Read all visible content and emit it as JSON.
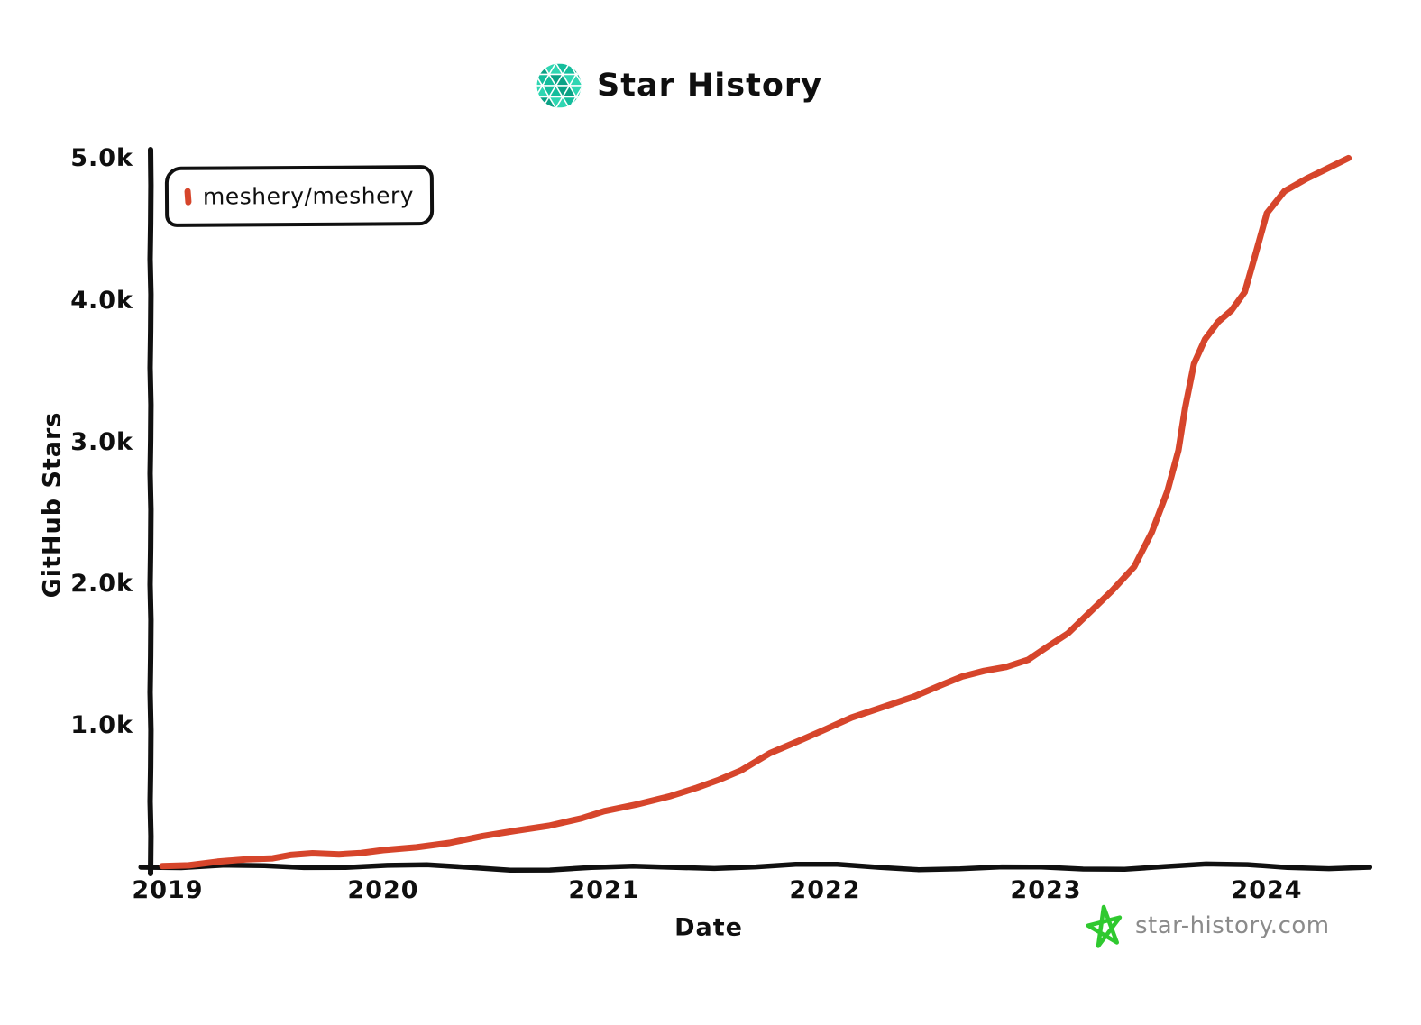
{
  "header": {
    "title": "Star History"
  },
  "legend": {
    "items": [
      {
        "label": "meshery/meshery",
        "color": "#d6452b"
      }
    ]
  },
  "watermark": {
    "text": "star-history.com",
    "text_color": "#8b8b8b",
    "star_color": "#2fc92f"
  },
  "colors": {
    "accent_red": "#d6452b",
    "axis_black": "#101010",
    "logo_teals": [
      "#14bd9c",
      "#0ba185",
      "#2fd6b2"
    ],
    "watermark_green": "#2fc92f",
    "watermark_gray": "#8b8b8b"
  },
  "chart_data": {
    "type": "line",
    "title": "Star History",
    "xlabel": "Date",
    "ylabel": "GitHub Stars",
    "xlim": [
      2018.93,
      2024.45
    ],
    "ylim": [
      0,
      5050
    ],
    "grid": false,
    "legend_position": "top-left",
    "style": "hand-drawn (xkcd)",
    "xticks": [
      {
        "label": "2019",
        "value": 2019
      },
      {
        "label": "2020",
        "value": 2020
      },
      {
        "label": "2021",
        "value": 2021
      },
      {
        "label": "2022",
        "value": 2022
      },
      {
        "label": "2023",
        "value": 2023
      },
      {
        "label": "2024",
        "value": 2024
      }
    ],
    "yticks": [
      {
        "label": "1.0k",
        "value": 1000
      },
      {
        "label": "2.0k",
        "value": 2000
      },
      {
        "label": "3.0k",
        "value": 3000
      },
      {
        "label": "4.0k",
        "value": 4000
      },
      {
        "label": "5.0k",
        "value": 5000
      }
    ],
    "series": [
      {
        "name": "meshery/meshery",
        "color": "#d6452b",
        "points": [
          [
            2019.0,
            8
          ],
          [
            2019.12,
            20
          ],
          [
            2019.25,
            35
          ],
          [
            2019.38,
            52
          ],
          [
            2019.5,
            70
          ],
          [
            2019.58,
            86
          ],
          [
            2019.68,
            92
          ],
          [
            2019.8,
            96
          ],
          [
            2019.9,
            104
          ],
          [
            2020.0,
            114
          ],
          [
            2020.15,
            142
          ],
          [
            2020.3,
            178
          ],
          [
            2020.45,
            215
          ],
          [
            2020.6,
            255
          ],
          [
            2020.75,
            300
          ],
          [
            2020.9,
            345
          ],
          [
            2021.0,
            390
          ],
          [
            2021.15,
            450
          ],
          [
            2021.3,
            505
          ],
          [
            2021.42,
            555
          ],
          [
            2021.52,
            620
          ],
          [
            2021.62,
            690
          ],
          [
            2021.75,
            800
          ],
          [
            2021.88,
            890
          ],
          [
            2022.0,
            980
          ],
          [
            2022.12,
            1055
          ],
          [
            2022.25,
            1120
          ],
          [
            2022.4,
            1210
          ],
          [
            2022.52,
            1285
          ],
          [
            2022.62,
            1340
          ],
          [
            2022.72,
            1390
          ],
          [
            2022.82,
            1420
          ],
          [
            2022.92,
            1460
          ],
          [
            2023.0,
            1550
          ],
          [
            2023.1,
            1660
          ],
          [
            2023.2,
            1800
          ],
          [
            2023.3,
            1950
          ],
          [
            2023.4,
            2130
          ],
          [
            2023.48,
            2370
          ],
          [
            2023.55,
            2650
          ],
          [
            2023.6,
            2950
          ],
          [
            2023.63,
            3250
          ],
          [
            2023.67,
            3550
          ],
          [
            2023.72,
            3730
          ],
          [
            2023.78,
            3860
          ],
          [
            2023.84,
            3930
          ],
          [
            2023.9,
            4060
          ],
          [
            2023.94,
            4290
          ],
          [
            2024.0,
            4620
          ],
          [
            2024.08,
            4770
          ],
          [
            2024.18,
            4870
          ],
          [
            2024.28,
            4945
          ],
          [
            2024.37,
            5010
          ]
        ]
      }
    ]
  }
}
